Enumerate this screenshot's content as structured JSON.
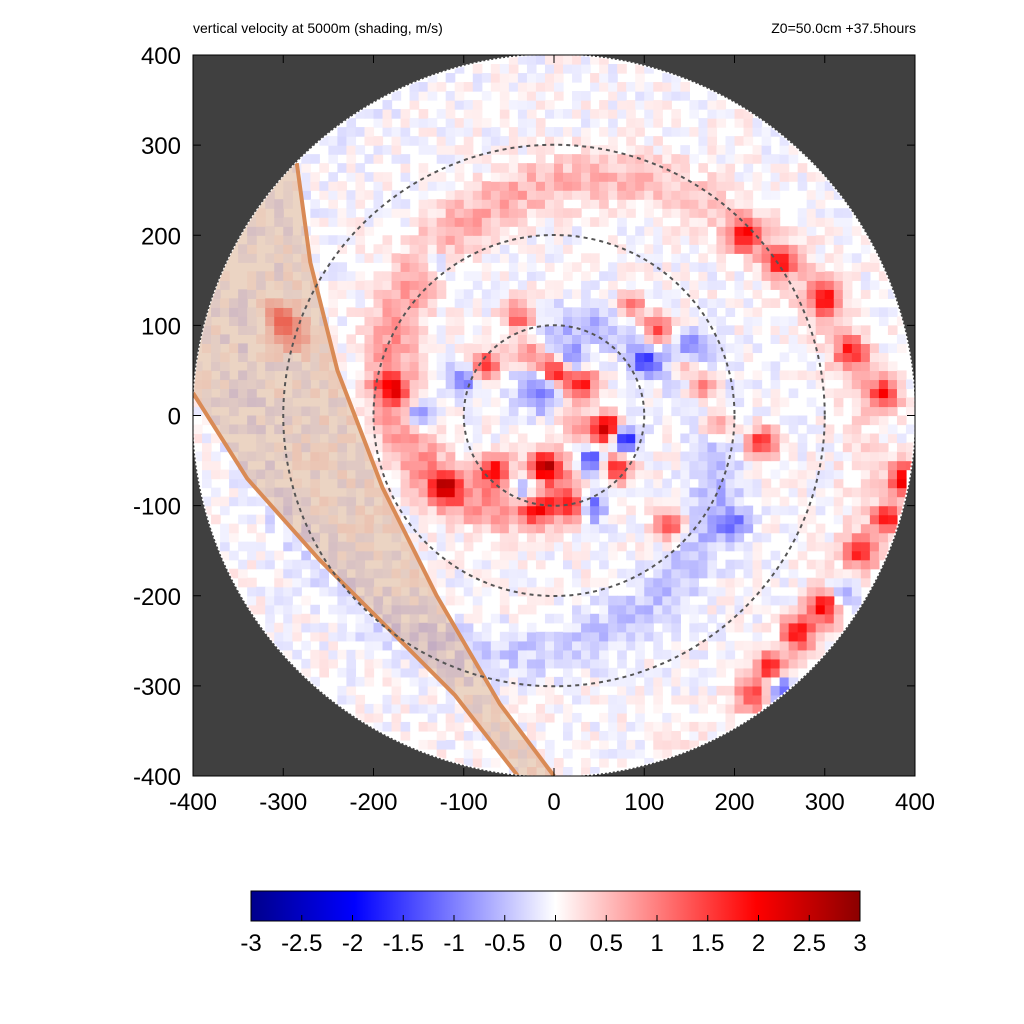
{
  "title_left": "vertical velocity at 5000m (shading, m/s)",
  "title_right": "Z0=50.0cm  +37.5hours",
  "colors": {
    "background_outside": "#404040",
    "negative_max": "#00008b",
    "positive_max": "#8b0000",
    "zero": "#ffffff",
    "shear_band_fill": "#d2a07a",
    "shear_band_edge": "#d98a55",
    "ring": "#555555"
  },
  "chart_data": {
    "type": "heatmap",
    "title": "vertical velocity at 5000m (shading, m/s)",
    "annotation": "Z0=50.0cm  +37.5hours",
    "xlim": [
      -400,
      400
    ],
    "ylim": [
      -400,
      400
    ],
    "xticks": [
      "-400",
      "-300",
      "-200",
      "-100",
      "0",
      "100",
      "200",
      "300",
      "400"
    ],
    "yticks": [
      "400",
      "300",
      "200",
      "100",
      "0",
      "-100",
      "-200",
      "-300",
      "-400"
    ],
    "domain_radius": 400,
    "range_rings": [
      100,
      200,
      300
    ],
    "colorbar": {
      "min": -3,
      "max": 3,
      "ticks": [
        "-3",
        "-2.5",
        "-2",
        "-1.5",
        "-1",
        "-0.5",
        "0",
        "0.5",
        "1",
        "1.5",
        "2",
        "2.5",
        "3"
      ]
    },
    "shaded_band": {
      "outer_edge": [
        [
          -285,
          280
        ],
        [
          -270,
          170
        ],
        [
          -240,
          50
        ],
        [
          -190,
          -80
        ],
        [
          -130,
          -200
        ],
        [
          -60,
          -320
        ],
        [
          0,
          -400
        ]
      ],
      "inner_edge": [
        [
          -400,
          25
        ],
        [
          -340,
          -70
        ],
        [
          -260,
          -160
        ],
        [
          -180,
          -240
        ],
        [
          -110,
          -310
        ],
        [
          -40,
          -400
        ]
      ]
    },
    "updraft_cells": [
      [
        60,
        -15,
        3.0
      ],
      [
        -10,
        -55,
        2.6
      ],
      [
        0,
        50,
        2.2
      ],
      [
        30,
        35,
        2.0
      ],
      [
        -75,
        55,
        1.6
      ],
      [
        -65,
        -60,
        2.0
      ],
      [
        -120,
        -80,
        1.8
      ],
      [
        -20,
        -100,
        1.6
      ],
      [
        20,
        -100,
        1.6
      ],
      [
        70,
        -55,
        1.8
      ],
      [
        115,
        95,
        2.0
      ],
      [
        145,
        60,
        1.6
      ],
      [
        165,
        30,
        1.6
      ],
      [
        180,
        -10,
        1.5
      ],
      [
        230,
        -30,
        1.7
      ],
      [
        300,
        130,
        1.8
      ],
      [
        330,
        70,
        1.6
      ],
      [
        365,
        25,
        1.8
      ],
      [
        390,
        -70,
        2.4
      ],
      [
        370,
        -115,
        1.8
      ],
      [
        340,
        -150,
        1.6
      ],
      [
        300,
        -210,
        2.2
      ],
      [
        270,
        -240,
        2.0
      ],
      [
        240,
        -280,
        1.8
      ],
      [
        220,
        -310,
        1.6
      ],
      [
        210,
        200,
        1.8
      ],
      [
        250,
        170,
        1.5
      ],
      [
        -180,
        30,
        1.4
      ],
      [
        -305,
        110,
        1.3
      ],
      [
        -290,
        90,
        1.2
      ],
      [
        -30,
        70,
        1.4
      ],
      [
        -40,
        110,
        1.3
      ],
      [
        85,
        120,
        1.3
      ],
      [
        130,
        -120,
        1.4
      ]
    ],
    "downdraft_cells": [
      [
        75,
        -25,
        -2.4
      ],
      [
        40,
        -50,
        -2.0
      ],
      [
        -30,
        -85,
        -1.6
      ],
      [
        40,
        -100,
        -1.5
      ],
      [
        -150,
        0,
        -1.3
      ],
      [
        -100,
        40,
        -1.2
      ],
      [
        150,
        70,
        -1.4
      ],
      [
        200,
        -120,
        -1.0
      ],
      [
        320,
        -200,
        -1.2
      ],
      [
        250,
        -300,
        -1.4
      ],
      [
        -10,
        30,
        -1.3
      ],
      [
        20,
        60,
        -1.1
      ],
      [
        100,
        60,
        -1.2
      ],
      [
        -130,
        170,
        -0.9
      ]
    ],
    "spiral_bands": [
      {
        "sign": 1,
        "amp": 0.9
      },
      {
        "sign": -1,
        "amp": 0.6
      }
    ]
  }
}
